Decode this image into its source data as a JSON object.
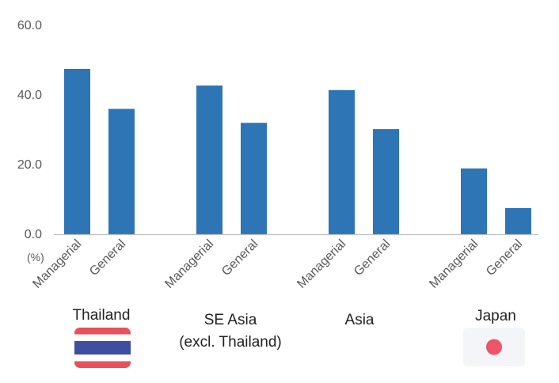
{
  "chart_data": {
    "type": "bar",
    "y_unit": "(%)",
    "yticks": [
      "0.0",
      "20.0",
      "40.0",
      "60.0"
    ],
    "ylim": [
      0,
      60
    ],
    "grid": false,
    "groups": [
      {
        "label": "Thailand",
        "label_line2": "",
        "flag": "thailand-flag"
      },
      {
        "label": "SE Asia",
        "label_line2": "(excl. Thailand)",
        "flag": ""
      },
      {
        "label": "Asia",
        "label_line2": "",
        "flag": ""
      },
      {
        "label": "Japan",
        "label_line2": "",
        "flag": "japan-flag"
      }
    ],
    "categories": [
      "Managerial",
      "General",
      "Managerial",
      "General",
      "Managerial",
      "General",
      "Managerial",
      "General"
    ],
    "values": [
      47.5,
      36.0,
      42.7,
      32.0,
      41.4,
      30.2,
      18.9,
      7.5
    ],
    "colors": {
      "bar": "#2e75b6",
      "axis": "#bfbfbf",
      "thai_red": "#e8505b",
      "thai_blue": "#3f4ea0",
      "japan_red": "#ee5566",
      "japan_bg": "#f4f5f8"
    }
  }
}
